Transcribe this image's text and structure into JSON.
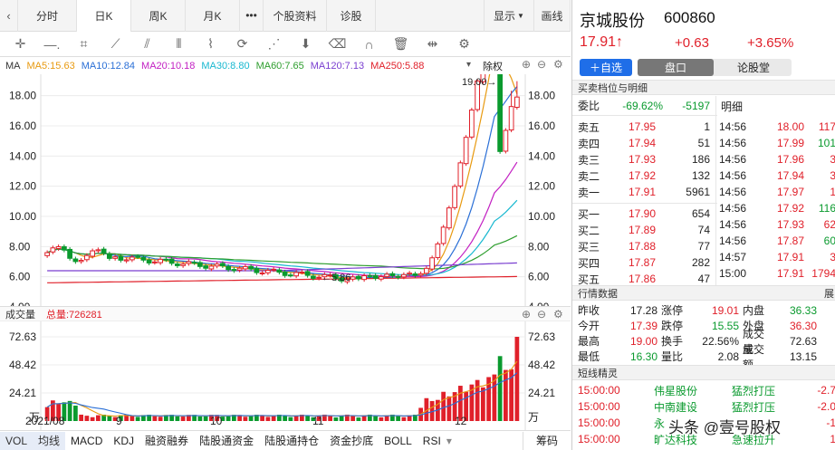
{
  "tabs": [
    "分时",
    "日K",
    "周K",
    "月K",
    "•••",
    "个股资料",
    "诊股",
    "显示",
    "画线"
  ],
  "active_tab": "日K",
  "toolbar_icons": [
    "crosshair-icon",
    "line-icon",
    "crop-icon",
    "fan-icon",
    "channel-icon",
    "bars-icon",
    "wave-icon",
    "cycle-icon",
    "fib-icon",
    "arrow-down-icon",
    "eraser-icon",
    "magnet-icon",
    "trash-icon",
    "center-icon",
    "settings-icon"
  ],
  "ma": {
    "label": "MA",
    "items": [
      {
        "text": "MA5:15.63",
        "color": "#e89a10"
      },
      {
        "text": "MA10:12.84",
        "color": "#2a6fd6"
      },
      {
        "text": "MA20:10.18",
        "color": "#c21fc2"
      },
      {
        "text": "MA30:8.80",
        "color": "#18b8d0"
      },
      {
        "text": "MA60:7.65",
        "color": "#2e9e2e"
      },
      {
        "text": "MA120:7.13",
        "color": "#7a3fd0"
      },
      {
        "text": "MA250:5.88",
        "color": "#e0202a"
      }
    ],
    "adjust": "除权"
  },
  "price_axis": [
    "18.00",
    "16.00",
    "14.00",
    "12.00",
    "10.00",
    "8.00",
    "6.00",
    "4.00"
  ],
  "price_right_axis": [
    "18.00",
    "16.00",
    "14.00",
    "12.00",
    "10.00",
    "8.00",
    "6.00",
    "4.00"
  ],
  "high_mark": "19.00→",
  "low_mark": "←5.86",
  "volume": {
    "title": "成交量",
    "total": "总量:726281",
    "axis": [
      "72.63",
      "48.42",
      "24.21",
      "万"
    ],
    "right_axis": [
      "72.63",
      "48.42",
      "24.21",
      "万"
    ]
  },
  "date_axis": [
    "2021/08",
    "9",
    "10",
    "11",
    "12"
  ],
  "bottom_tabs": [
    {
      "label": "VOL",
      "active": true
    },
    {
      "label": "均线",
      "active": true
    },
    {
      "label": "MACD"
    },
    {
      "label": "KDJ"
    },
    {
      "label": "融资融券"
    },
    {
      "label": "陆股通资金"
    },
    {
      "label": "陆股通持仓"
    },
    {
      "label": "资金抄底"
    },
    {
      "label": "BOLL"
    },
    {
      "label": "RSI"
    },
    {
      "label": "筹码"
    }
  ],
  "stock": {
    "name": "京城股份",
    "code": "600860",
    "price": "17.91↑",
    "change": "+0.63",
    "change_pct": "+3.65%"
  },
  "actions": {
    "add": "＋自选",
    "tab1": "盘口",
    "tab2": "论股堂"
  },
  "orderbook": {
    "header": "买卖档位与明细",
    "weibi_label": "委比",
    "weibi_pct": "-69.62%",
    "weibi_val": "-5197",
    "detail_label": "明细",
    "asks": [
      {
        "label": "卖五",
        "price": "17.95",
        "vol": "1"
      },
      {
        "label": "卖四",
        "price": "17.94",
        "vol": "51"
      },
      {
        "label": "卖三",
        "price": "17.93",
        "vol": "186"
      },
      {
        "label": "卖二",
        "price": "17.92",
        "vol": "132"
      },
      {
        "label": "卖一",
        "price": "17.91",
        "vol": "5961"
      }
    ],
    "bids": [
      {
        "label": "买一",
        "price": "17.90",
        "vol": "654"
      },
      {
        "label": "买二",
        "price": "17.89",
        "vol": "74"
      },
      {
        "label": "买三",
        "price": "17.88",
        "vol": "77"
      },
      {
        "label": "买四",
        "price": "17.87",
        "vol": "282"
      },
      {
        "label": "买五",
        "price": "17.86",
        "vol": "47"
      }
    ],
    "trades": [
      {
        "time": "14:56",
        "price": "18.00",
        "vol": "117",
        "c": "red"
      },
      {
        "time": "14:56",
        "price": "17.99",
        "vol": "101",
        "c": "green"
      },
      {
        "time": "14:56",
        "price": "17.96",
        "vol": "3",
        "c": "red"
      },
      {
        "time": "14:56",
        "price": "17.94",
        "vol": "3",
        "c": "red"
      },
      {
        "time": "14:56",
        "price": "17.97",
        "vol": "1",
        "c": "red"
      },
      {
        "time": "14:56",
        "price": "17.92",
        "vol": "116",
        "c": "green"
      },
      {
        "time": "14:56",
        "price": "17.93",
        "vol": "62",
        "c": "red"
      },
      {
        "time": "14:56",
        "price": "17.87",
        "vol": "60",
        "c": "green"
      },
      {
        "time": "14:57",
        "price": "17.91",
        "vol": "3",
        "c": "red"
      },
      {
        "time": "15:00",
        "price": "17.91",
        "vol": "1794",
        "c": "red"
      }
    ]
  },
  "quote": {
    "header": "行情数据",
    "expand": "展",
    "rows": [
      [
        {
          "l": "昨收",
          "v": "17.28",
          "c": ""
        },
        {
          "l": "涨停",
          "v": "19.01",
          "c": "red"
        },
        {
          "l": "内盘",
          "v": "36.33",
          "c": "green"
        }
      ],
      [
        {
          "l": "今开",
          "v": "17.39",
          "c": "red"
        },
        {
          "l": "跌停",
          "v": "15.55",
          "c": "green"
        },
        {
          "l": "外盘",
          "v": "36.30",
          "c": "red"
        }
      ],
      [
        {
          "l": "最高",
          "v": "19.00",
          "c": "red"
        },
        {
          "l": "换手",
          "v": "22.56%",
          "c": ""
        },
        {
          "l": "成交量",
          "v": "72.63",
          "c": ""
        }
      ],
      [
        {
          "l": "最低",
          "v": "16.30",
          "c": "green"
        },
        {
          "l": "量比",
          "v": "2.08",
          "c": ""
        },
        {
          "l": "成交额",
          "v": "13.15",
          "c": ""
        }
      ]
    ]
  },
  "shortline": {
    "header": "短线精灵",
    "items": [
      {
        "time": "15:00:00",
        "name": "伟星股份",
        "type": "猛烈打压",
        "val": "-2.7"
      },
      {
        "time": "15:00:00",
        "name": "中南建设",
        "type": "猛烈打压",
        "val": "-2.0"
      },
      {
        "time": "15:00:00",
        "name": "永",
        "type": "",
        "val": "-1"
      },
      {
        "time": "15:00:00",
        "name": "旷达科技",
        "type": "急速拉升",
        "val": "1"
      }
    ],
    "watermark": "头条 @壹号股权"
  }
}
